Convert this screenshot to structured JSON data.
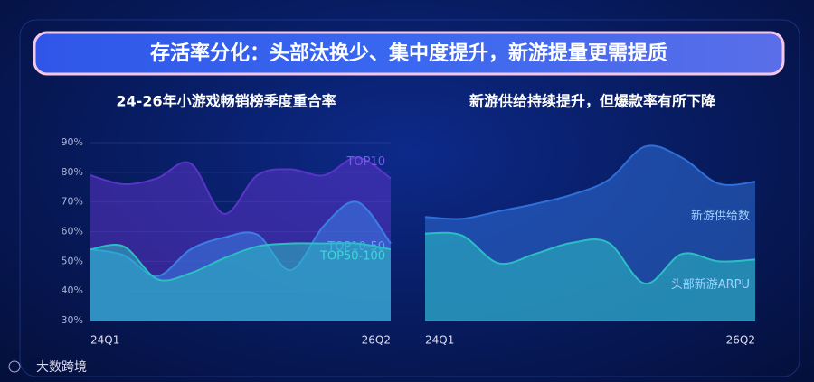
{
  "header": {
    "title": "存活率分化：头部汰换少、集中度提升，新游提量更需提质"
  },
  "brand": "大数跨境",
  "chart_data": [
    {
      "type": "area",
      "title": "24-26年小游戏畅销榜季度重合率",
      "categories": [
        "24Q1",
        null,
        null,
        null,
        null,
        null,
        null,
        null,
        null,
        "26Q2"
      ],
      "ylim": [
        30,
        90
      ],
      "yticks": [
        {
          "value": 30,
          "label": "30%"
        },
        {
          "value": 40,
          "label": "40%"
        },
        {
          "value": 50,
          "label": "50%"
        },
        {
          "value": 60,
          "label": "60%"
        },
        {
          "value": 70,
          "label": "70%"
        },
        {
          "value": 80,
          "label": "80%"
        },
        {
          "value": 90,
          "label": "90%"
        }
      ],
      "grid": true,
      "series": [
        {
          "name": "TOP10",
          "color": "#5a34c8",
          "values": [
            79,
            76,
            78,
            83,
            66,
            79,
            81,
            79,
            85,
            78
          ]
        },
        {
          "name": "TOP10-50",
          "color": "#3a7fe6",
          "values": [
            54,
            52,
            45,
            54,
            58,
            59,
            47,
            62,
            70,
            56
          ]
        },
        {
          "name": "TOP50-100",
          "color": "#2bbfc2",
          "values": [
            54,
            55,
            44,
            46,
            51,
            55,
            56,
            56,
            56,
            54
          ]
        }
      ]
    },
    {
      "type": "area",
      "title": "新游供给持续提升，但爆款率有所下降",
      "categories": [
        "24Q1",
        null,
        null,
        null,
        null,
        null,
        null,
        null,
        null,
        "26Q2"
      ],
      "ylim": [
        0,
        100
      ],
      "grid": false,
      "series": [
        {
          "name": "新游供给数",
          "color": "#2f70d8",
          "values": [
            56,
            55,
            59,
            63,
            68,
            76,
            94,
            88,
            74,
            75
          ]
        },
        {
          "name": "头部新游ARPU",
          "color": "#2bbfc2",
          "values": [
            47,
            46,
            31,
            36,
            42,
            42,
            20,
            36,
            32,
            33
          ]
        }
      ]
    }
  ]
}
